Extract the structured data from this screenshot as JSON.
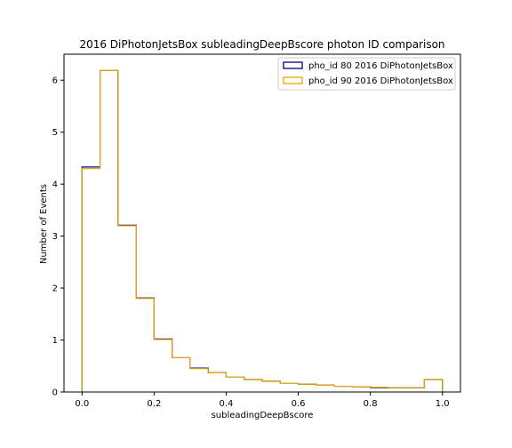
{
  "chart_data": {
    "type": "histogram-step",
    "title": "2016 DiPhotonJetsBox subleadingDeepBscore photon ID comparison",
    "xlabel": "subleadingDeepBscore",
    "ylabel": "Number of Events",
    "xlim": [
      -0.05,
      1.05
    ],
    "ylim": [
      0,
      6.5
    ],
    "xticks": [
      0.0,
      0.2,
      0.4,
      0.6,
      0.8,
      1.0
    ],
    "xtick_labels": [
      "0.0",
      "0.2",
      "0.4",
      "0.6",
      "0.8",
      "1.0"
    ],
    "yticks": [
      0,
      1,
      2,
      3,
      4,
      5,
      6
    ],
    "ytick_labels": [
      "0",
      "1",
      "2",
      "3",
      "4",
      "5",
      "6"
    ],
    "bin_edges": [
      0.0,
      0.05,
      0.1,
      0.15,
      0.2,
      0.25,
      0.3,
      0.35,
      0.4,
      0.45,
      0.5,
      0.55,
      0.6,
      0.65,
      0.7,
      0.75,
      0.8,
      0.85,
      0.9,
      0.95,
      1.0
    ],
    "legend_position": "top-right",
    "series": [
      {
        "name": "pho_id 80 2016 DiPhotonJetsBox",
        "color": "#00007f",
        "values": [
          4.33,
          6.19,
          3.21,
          1.81,
          1.02,
          0.66,
          0.46,
          0.37,
          0.29,
          0.24,
          0.21,
          0.17,
          0.15,
          0.13,
          0.11,
          0.1,
          0.08,
          0.08,
          0.08,
          0.24
        ]
      },
      {
        "name": "pho_id 90 2016 DiPhotonJetsBox",
        "color": "#e6a700",
        "values": [
          4.3,
          6.19,
          3.2,
          1.8,
          1.01,
          0.66,
          0.45,
          0.37,
          0.29,
          0.24,
          0.21,
          0.17,
          0.15,
          0.13,
          0.11,
          0.1,
          0.09,
          0.08,
          0.08,
          0.24
        ]
      }
    ]
  }
}
